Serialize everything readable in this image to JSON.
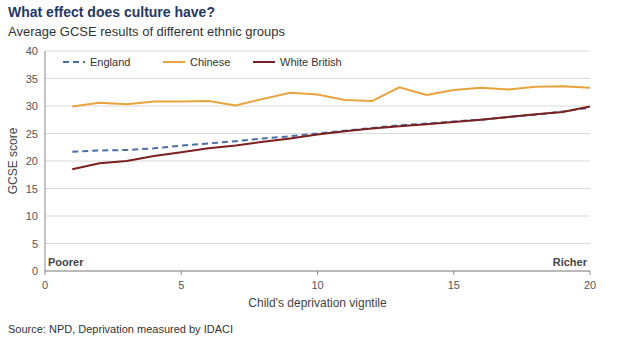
{
  "chart_data": {
    "type": "line",
    "title": "What effect does culture have?",
    "subtitle": "Average GCSE results of different ethnic groups",
    "x_label": "Child's deprivation vigntile",
    "y_label": "GCSE score",
    "annotations": [
      "Poorer",
      "Richer"
    ],
    "source": "Source: NPD, Deprivation measured by IDACI",
    "x": [
      1,
      2,
      3,
      4,
      5,
      6,
      7,
      8,
      9,
      10,
      11,
      12,
      13,
      14,
      15,
      16,
      17,
      18,
      19,
      20
    ],
    "series": [
      {
        "name": "England",
        "color": "#4a6fa5",
        "line_style": "dashed",
        "values": [
          21.7,
          21.9,
          22.0,
          22.3,
          22.8,
          23.2,
          23.6,
          24.1,
          24.5,
          25.0,
          25.5,
          26.0,
          26.5,
          26.8,
          27.2,
          27.5,
          28.0,
          28.4,
          29.0,
          29.7
        ]
      },
      {
        "name": "Chinese",
        "color": "#e8a33c",
        "line_style": "solid",
        "values": [
          29.9,
          30.6,
          30.3,
          30.8,
          30.8,
          30.9,
          30.1,
          31.3,
          32.4,
          32.1,
          31.1,
          30.9,
          33.4,
          32.0,
          32.9,
          33.3,
          33.0,
          33.5,
          33.6,
          33.3
        ]
      },
      {
        "name": "White British",
        "color": "#7b1f1f",
        "line_style": "solid",
        "values": [
          18.5,
          19.6,
          20.0,
          20.9,
          21.6,
          22.3,
          22.8,
          23.5,
          24.1,
          24.8,
          25.4,
          25.9,
          26.3,
          26.7,
          27.1,
          27.5,
          28.0,
          28.5,
          28.9,
          29.9
        ]
      }
    ],
    "xlim": [
      0,
      20
    ],
    "xticks": [
      0,
      5,
      10,
      15,
      20
    ],
    "ylim": [
      0,
      40
    ],
    "yticks": [
      0,
      5,
      10,
      15,
      20,
      25,
      30,
      35,
      40
    ],
    "grid": true,
    "legend": "top-left"
  }
}
